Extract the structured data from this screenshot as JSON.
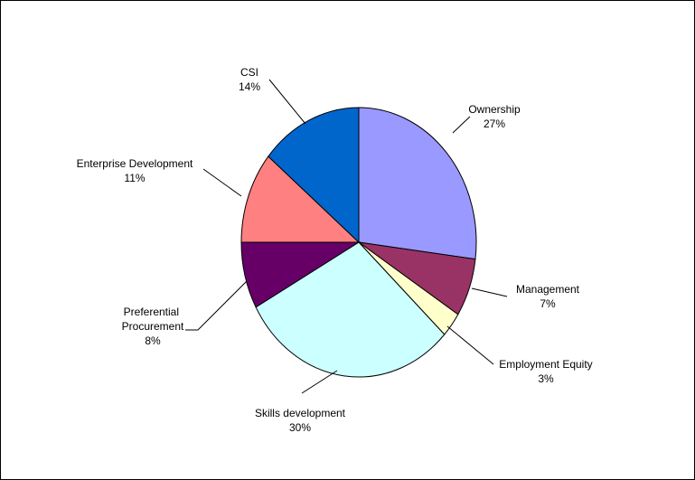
{
  "chart_data": {
    "type": "pie",
    "title": "",
    "start_angle_deg": 0,
    "direction": "clockwise",
    "slices": [
      {
        "label": "Ownership",
        "percent_label": "27%",
        "value": 27,
        "color": "#9999ff"
      },
      {
        "label": "Management",
        "percent_label": "7%",
        "value": 7,
        "color": "#993366"
      },
      {
        "label": "Employment Equity",
        "percent_label": "3%",
        "value": 3,
        "color": "#ffffcc"
      },
      {
        "label": "Skills development",
        "percent_label": "30%",
        "value": 30,
        "color": "#ccffff"
      },
      {
        "label": "Preferential Procurement",
        "percent_label": "8%",
        "value": 8,
        "color": "#660066"
      },
      {
        "label": "Enterprise Development",
        "percent_label": "11%",
        "value": 11,
        "color": "#ff8080"
      },
      {
        "label": "CSI",
        "percent_label": "14%",
        "value": 14,
        "color": "#0066cc"
      }
    ]
  }
}
